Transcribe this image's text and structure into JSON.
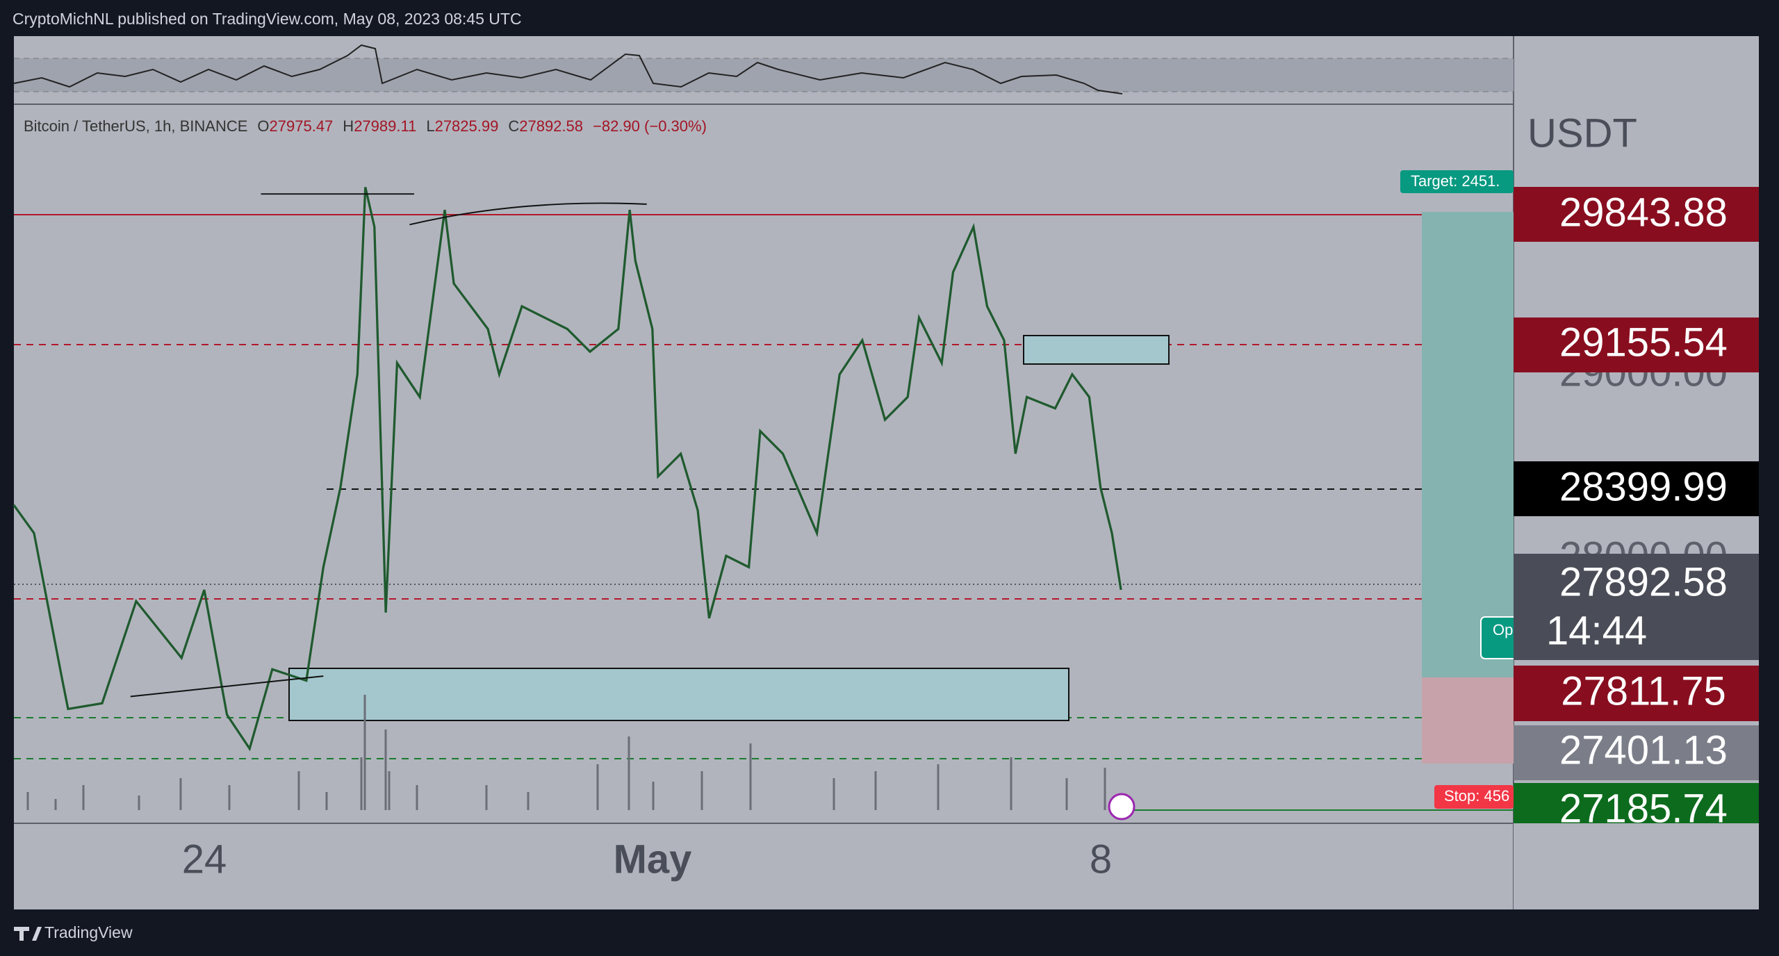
{
  "header": {
    "published": "CryptoMichNL published on TradingView.com, May 08, 2023 08:45 UTC"
  },
  "legend": {
    "symbol": "Bitcoin / TetherUS, 1h, BINANCE",
    "open_key": "O",
    "open": "27975.47",
    "high_key": "H",
    "high": "27989.11",
    "low_key": "L",
    "low": "27825.99",
    "close_key": "C",
    "close": "27892.58",
    "change": "−82.90 (−0.30%)"
  },
  "price_scale": {
    "currency": "USDT",
    "hidden_ticks": [
      "29000.00",
      "28000.00"
    ],
    "labels": [
      "29843.88",
      "29155.54",
      "28399.99",
      "27892.58",
      "27811.75",
      "27401.13",
      "27185.74"
    ],
    "countdown": "14:44"
  },
  "time_axis": [
    "24",
    "May",
    "8"
  ],
  "position_tool": {
    "target": "Target: 2451.",
    "stop": "Stop: 456",
    "open": "Op"
  },
  "footer": {
    "brand": "TradingView"
  }
}
